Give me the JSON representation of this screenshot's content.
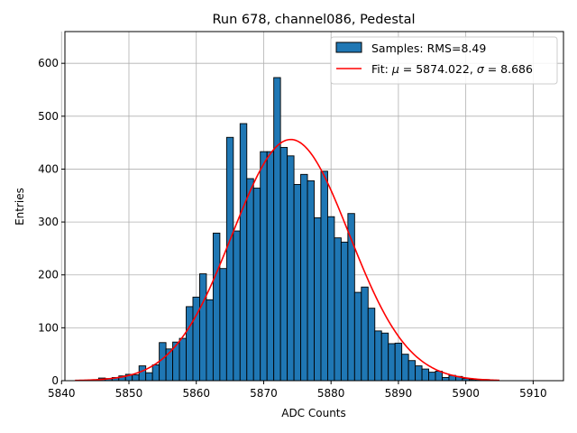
{
  "chart_data": {
    "type": "bar",
    "title": "Run 678, channel086, Pedestal",
    "xlabel": "ADC Counts",
    "ylabel": "Entries",
    "xlim": [
      5840.5,
      5914.5
    ],
    "ylim": [
      0,
      660
    ],
    "xticks": [
      5840,
      5850,
      5860,
      5870,
      5880,
      5890,
      5900,
      5910
    ],
    "yticks": [
      0,
      100,
      200,
      300,
      400,
      500,
      600
    ],
    "grid": true,
    "bin_start": 5842,
    "bin_width": 1,
    "values": [
      0,
      0,
      0,
      0,
      5,
      4,
      6,
      9,
      12,
      11,
      28,
      15,
      30,
      72,
      60,
      73,
      80,
      140,
      158,
      202,
      153,
      279,
      212,
      460,
      283,
      486,
      382,
      364,
      433,
      433,
      573,
      441,
      425,
      371,
      390,
      378,
      308,
      396,
      310,
      270,
      262,
      316,
      167,
      177,
      137,
      94,
      90,
      70,
      71,
      50,
      38,
      28,
      22,
      16,
      18,
      6,
      10,
      8,
      4,
      2,
      2,
      2,
      0
    ],
    "series": [
      {
        "name": "Samples: RMS=8.49",
        "type": "histogram",
        "color": "#1f77b4",
        "edgecolor": "#000000"
      },
      {
        "name": "Fit: μ = 5874.022, σ = 8.686",
        "type": "line",
        "color": "#ff0000",
        "mu": 5874.022,
        "sigma": 8.686,
        "amplitude": 456,
        "x_range": [
          5842,
          5905
        ]
      }
    ],
    "legend_position": "top-right"
  },
  "legend": {
    "samples_label": "Samples: RMS=8.49",
    "fit_label_prefix": "Fit: ",
    "fit_mu_symbol": "μ",
    "fit_mu_value": " = 5874.022, ",
    "fit_sigma_symbol": "σ",
    "fit_sigma_value": " = 8.686"
  }
}
